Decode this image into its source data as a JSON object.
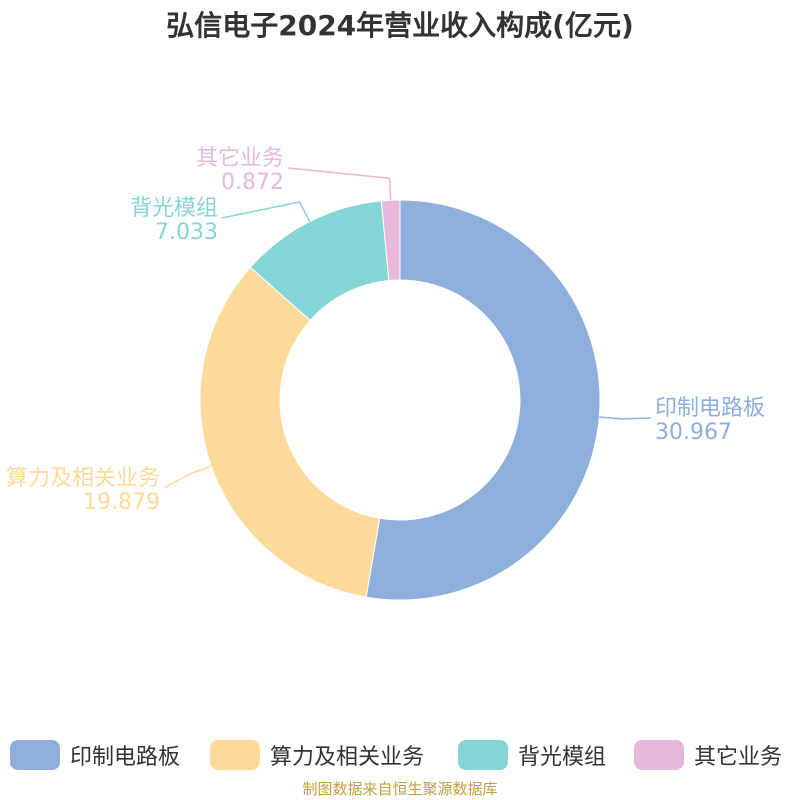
{
  "title": "弘信电子2024年营业收入构成(亿元)",
  "source": "制图数据来自恒生聚源数据库",
  "chart_data": {
    "type": "pie",
    "donut": true,
    "title": "弘信电子2024年营业收入构成(亿元)",
    "unit": "亿元",
    "legend_position": "bottom",
    "slices": [
      {
        "name": "印制电路板",
        "value": 30.967,
        "color": "#8eaedb"
      },
      {
        "name": "算力及相关业务",
        "value": 19.879,
        "color": "#fdd99a"
      },
      {
        "name": "背光模组",
        "value": 7.033,
        "color": "#85d5d6"
      },
      {
        "name": "其它业务",
        "value": 0.872,
        "color": "#e6b8d9"
      }
    ]
  }
}
